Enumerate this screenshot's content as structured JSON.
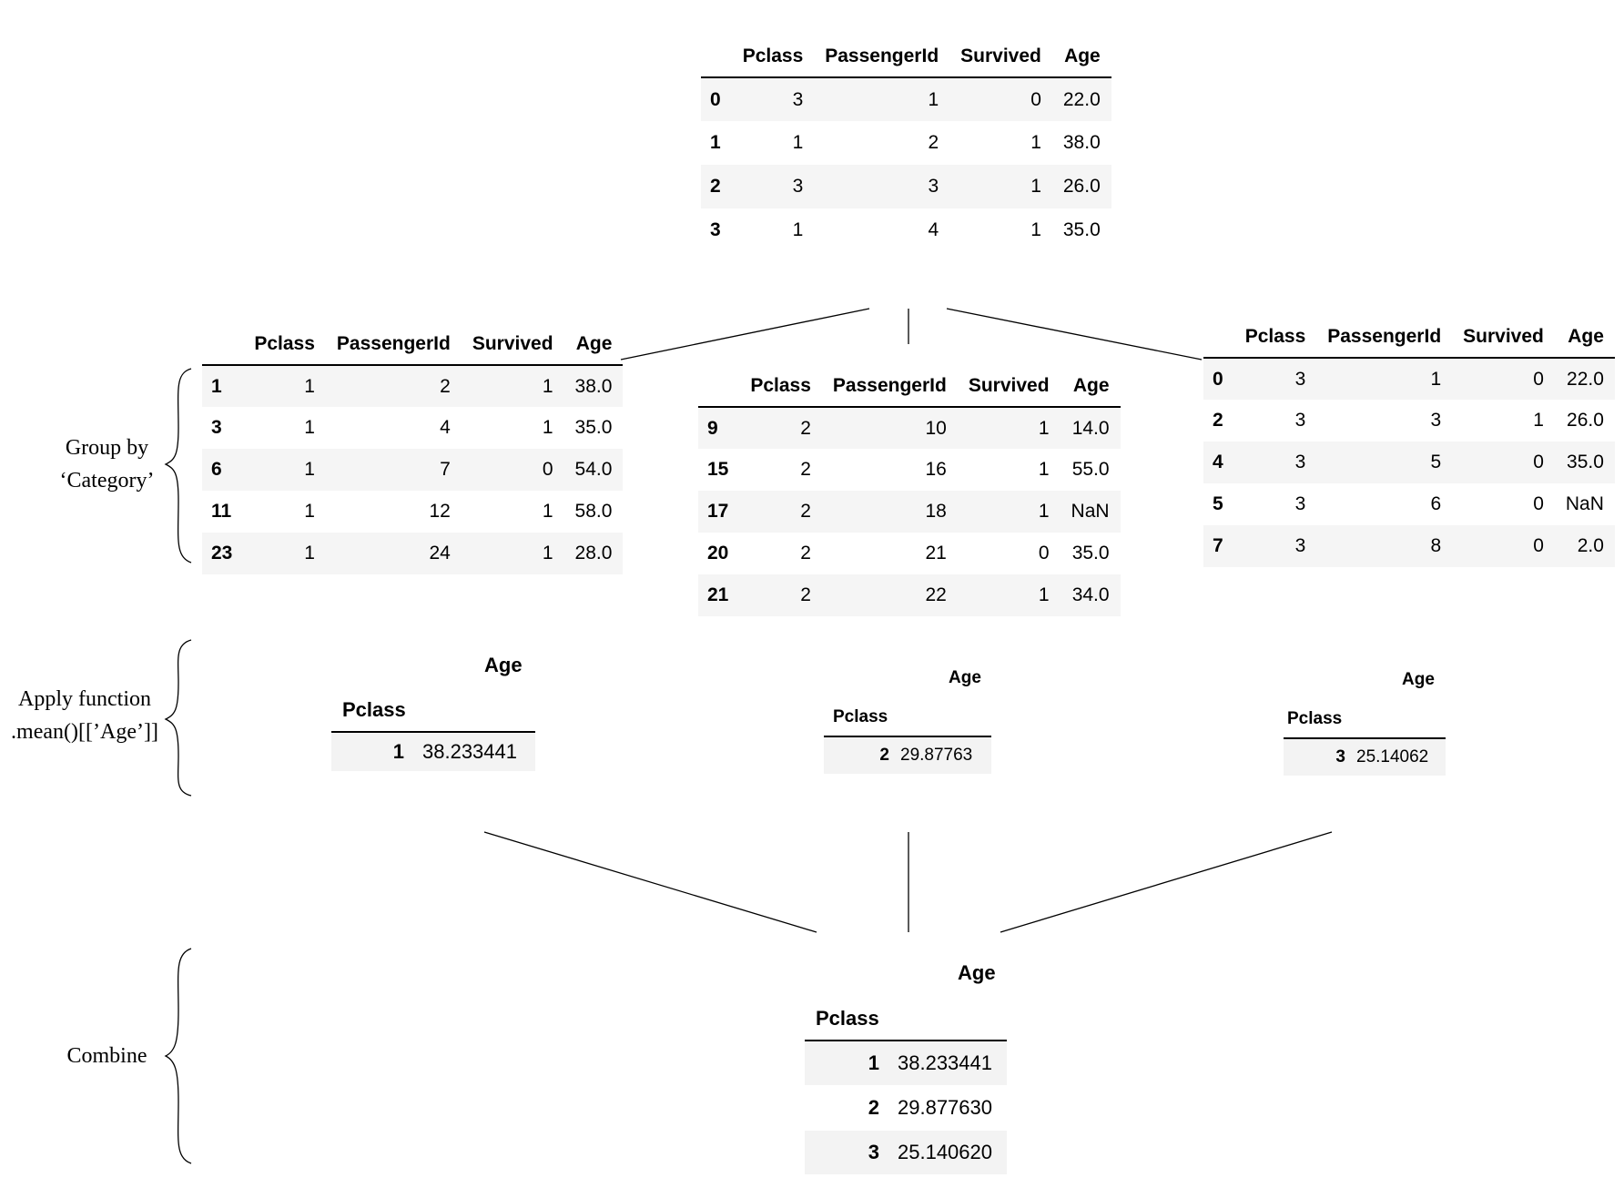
{
  "columns": [
    "Pclass",
    "PassengerId",
    "Survived",
    "Age"
  ],
  "source_table": {
    "rows": [
      {
        "idx": "0",
        "cells": [
          "3",
          "1",
          "0",
          "22.0"
        ]
      },
      {
        "idx": "1",
        "cells": [
          "1",
          "2",
          "1",
          "38.0"
        ]
      },
      {
        "idx": "2",
        "cells": [
          "3",
          "3",
          "1",
          "26.0"
        ]
      },
      {
        "idx": "3",
        "cells": [
          "1",
          "4",
          "1",
          "35.0"
        ]
      }
    ]
  },
  "groups": [
    {
      "rows": [
        {
          "idx": "1",
          "cells": [
            "1",
            "2",
            "1",
            "38.0"
          ]
        },
        {
          "idx": "3",
          "cells": [
            "1",
            "4",
            "1",
            "35.0"
          ]
        },
        {
          "idx": "6",
          "cells": [
            "1",
            "7",
            "0",
            "54.0"
          ]
        },
        {
          "idx": "11",
          "cells": [
            "1",
            "12",
            "1",
            "58.0"
          ]
        },
        {
          "idx": "23",
          "cells": [
            "1",
            "24",
            "1",
            "28.0"
          ]
        }
      ]
    },
    {
      "rows": [
        {
          "idx": "9",
          "cells": [
            "2",
            "10",
            "1",
            "14.0"
          ]
        },
        {
          "idx": "15",
          "cells": [
            "2",
            "16",
            "1",
            "55.0"
          ]
        },
        {
          "idx": "17",
          "cells": [
            "2",
            "18",
            "1",
            "NaN"
          ]
        },
        {
          "idx": "20",
          "cells": [
            "2",
            "21",
            "0",
            "35.0"
          ]
        },
        {
          "idx": "21",
          "cells": [
            "2",
            "22",
            "1",
            "34.0"
          ]
        }
      ]
    },
    {
      "rows": [
        {
          "idx": "0",
          "cells": [
            "3",
            "1",
            "0",
            "22.0"
          ]
        },
        {
          "idx": "2",
          "cells": [
            "3",
            "3",
            "1",
            "26.0"
          ]
        },
        {
          "idx": "4",
          "cells": [
            "3",
            "5",
            "0",
            "35.0"
          ]
        },
        {
          "idx": "5",
          "cells": [
            "3",
            "6",
            "0",
            "NaN"
          ]
        },
        {
          "idx": "7",
          "cells": [
            "3",
            "8",
            "0",
            "2.0"
          ]
        }
      ]
    }
  ],
  "applied": [
    {
      "value_header": "Age",
      "index_header": "Pclass",
      "idx": "1",
      "value": "38.233441"
    },
    {
      "value_header": "Age",
      "index_header": "Pclass",
      "idx": "2",
      "value": "29.87763"
    },
    {
      "value_header": "Age",
      "index_header": "Pclass",
      "idx": "3",
      "value": "25.14062"
    }
  ],
  "combined": {
    "value_header": "Age",
    "index_header": "Pclass",
    "rows": [
      {
        "idx": "1",
        "value": "38.233441"
      },
      {
        "idx": "2",
        "value": "29.877630"
      },
      {
        "idx": "3",
        "value": "25.140620"
      }
    ]
  },
  "labels": {
    "group_by": [
      "Group by",
      "‘Category’"
    ],
    "apply": [
      "Apply function",
      ".mean()[[’Age’]]"
    ],
    "combine": [
      "Combine"
    ]
  }
}
